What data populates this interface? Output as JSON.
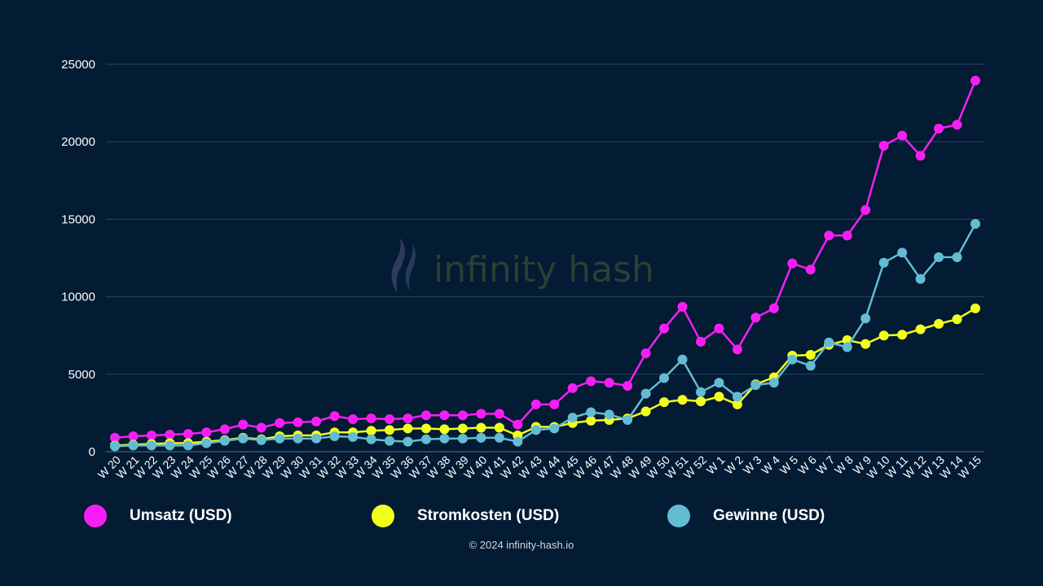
{
  "chart_data": {
    "type": "line",
    "categories": [
      "W 20",
      "W 21",
      "W 22",
      "W 23",
      "W 24",
      "W 25",
      "W 26",
      "W 27",
      "W 28",
      "W 29",
      "W 30",
      "W 31",
      "W 32",
      "W 33",
      "W 34",
      "W 35",
      "W 36",
      "W 37",
      "W 38",
      "W 39",
      "W 40",
      "W 41",
      "W 42",
      "W 43",
      "W 44",
      "W 45",
      "W 46",
      "W 47",
      "W 48",
      "W 49",
      "W 50",
      "W 51",
      "W 52",
      "W 1",
      "W 2",
      "W 3",
      "W 4",
      "W 5",
      "W 6",
      "W 7",
      "W 8",
      "W 9",
      "W 10",
      "W 11",
      "W 12",
      "W 13",
      "W 14",
      "W 15"
    ],
    "series": [
      {
        "name": "Umsatz (USD)",
        "color": "#f51ff5",
        "values": [
          900,
          1000,
          1050,
          1100,
          1150,
          1250,
          1450,
          1750,
          1550,
          1850,
          1900,
          1950,
          2300,
          2100,
          2150,
          2100,
          2150,
          2350,
          2350,
          2350,
          2450,
          2450,
          1750,
          3050,
          3050,
          4100,
          4550,
          4450,
          4250,
          6350,
          7950,
          9350,
          7100,
          7950,
          6600,
          8650,
          9250,
          12150,
          11750,
          13950,
          13950,
          15600,
          19750,
          20400,
          19100,
          20850,
          21100,
          23950
        ]
      },
      {
        "name": "Stromkosten (USD)",
        "color": "#f1ff1c",
        "values": [
          400,
          450,
          500,
          550,
          550,
          650,
          750,
          900,
          800,
          1000,
          1050,
          1050,
          1250,
          1250,
          1350,
          1400,
          1500,
          1500,
          1450,
          1500,
          1550,
          1550,
          1050,
          1600,
          1600,
          1850,
          2000,
          2050,
          2150,
          2600,
          3200,
          3350,
          3250,
          3550,
          3050,
          4350,
          4800,
          6200,
          6250,
          6900,
          7200,
          6950,
          7500,
          7550,
          7900,
          8250,
          8550,
          9250
        ]
      },
      {
        "name": "Gewinne (USD)",
        "color": "#63bcd4",
        "values": [
          350,
          400,
          400,
          400,
          400,
          550,
          700,
          850,
          750,
          850,
          850,
          850,
          1000,
          950,
          800,
          700,
          650,
          800,
          850,
          850,
          900,
          900,
          650,
          1400,
          1500,
          2200,
          2550,
          2400,
          2050,
          3750,
          4750,
          5950,
          3850,
          4450,
          3550,
          4300,
          4450,
          5950,
          5550,
          7050,
          6750,
          8600,
          12200,
          12850,
          11150,
          12550,
          12550,
          14700
        ]
      }
    ],
    "ylim": [
      0,
      25000
    ],
    "yticks": [
      0,
      5000,
      10000,
      15000,
      20000,
      25000
    ],
    "grid": true,
    "legend_position": "bottom"
  },
  "watermark": {
    "text": "infinity hash"
  },
  "footer": {
    "text": "© 2024 infinity-hash.io"
  }
}
